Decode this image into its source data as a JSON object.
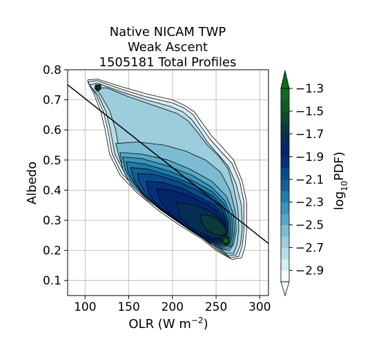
{
  "chart_data": {
    "type": "contourf",
    "title": [
      "Native NICAM TWP",
      "Weak Ascent",
      "1505181 Total Profiles"
    ],
    "xlabel_main": "OLR (W m",
    "xlabel_sup": "−2",
    "xlabel_end": ")",
    "ylabel": "Albedo",
    "xlim": [
      80,
      310
    ],
    "ylim": [
      0.05,
      0.8
    ],
    "xticks": [
      100,
      150,
      200,
      250,
      300
    ],
    "yticks": [
      0.1,
      0.2,
      0.3,
      0.4,
      0.5,
      0.6,
      0.7,
      0.8
    ],
    "ytick_labels": [
      "0.1",
      "0.2",
      "0.3",
      "0.4",
      "0.5",
      "0.6",
      "0.7",
      "0.8"
    ],
    "grid": true,
    "colorbar": {
      "label_main": "log",
      "label_sub": "10",
      "label_end": "PDF)",
      "levels": [
        -3.0,
        -2.9,
        -2.8,
        -2.7,
        -2.6,
        -2.5,
        -2.4,
        -2.3,
        -2.2,
        -2.1,
        -2.0,
        -1.9,
        -1.8,
        -1.7,
        -1.6,
        -1.5,
        -1.4,
        -1.3
      ],
      "tick_values": [
        -2.9,
        -2.7,
        -2.5,
        -2.3,
        -2.1,
        -1.9,
        -1.7,
        -1.5,
        -1.3
      ],
      "tick_labels": [
        "−2.9",
        "−2.7",
        "−2.5",
        "−2.3",
        "−2.1",
        "−1.9",
        "−1.7",
        "−1.5",
        "−1.3"
      ],
      "colors": [
        "#f7fcfd",
        "#d6ecf1",
        "#b9dde6",
        "#9ccddc",
        "#7cbcd2",
        "#57a7c5",
        "#3a93b8",
        "#1f7caa",
        "#11609a",
        "#0a4b8a",
        "#06317a",
        "#052569",
        "#062e55",
        "#0b3a3a",
        "#0c4a2b",
        "#0f5c26",
        "#0f6b1f",
        "#08701a"
      ],
      "over_color": "#08701a",
      "under_color": "#f7fcfd",
      "extend": "both"
    },
    "contours": [
      {
        "level": -3.0,
        "points": [
          [
            103,
            0.766
          ],
          [
            114,
            0.769
          ],
          [
            140,
            0.745
          ],
          [
            170,
            0.72
          ],
          [
            200,
            0.7
          ],
          [
            215,
            0.68
          ],
          [
            225,
            0.66
          ],
          [
            235,
            0.62
          ],
          [
            245,
            0.58
          ],
          [
            258,
            0.54
          ],
          [
            270,
            0.5
          ],
          [
            280,
            0.43
          ],
          [
            285,
            0.36
          ],
          [
            285,
            0.27
          ],
          [
            283,
            0.21
          ],
          [
            279,
            0.175
          ],
          [
            268,
            0.17
          ],
          [
            250,
            0.2
          ],
          [
            235,
            0.235
          ],
          [
            210,
            0.28
          ],
          [
            185,
            0.33
          ],
          [
            160,
            0.39
          ],
          [
            140,
            0.45
          ],
          [
            128,
            0.52
          ],
          [
            123,
            0.6
          ],
          [
            118,
            0.66
          ],
          [
            110,
            0.72
          ],
          [
            103,
            0.76
          ]
        ]
      },
      {
        "level": -2.9,
        "points": [
          [
            104,
            0.76
          ],
          [
            114,
            0.764
          ],
          [
            140,
            0.737
          ],
          [
            170,
            0.71
          ],
          [
            200,
            0.69
          ],
          [
            214,
            0.672
          ],
          [
            224,
            0.65
          ],
          [
            233,
            0.61
          ],
          [
            243,
            0.57
          ],
          [
            255,
            0.53
          ],
          [
            268,
            0.49
          ],
          [
            277,
            0.43
          ],
          [
            282,
            0.36
          ],
          [
            282,
            0.27
          ],
          [
            280,
            0.215
          ],
          [
            276,
            0.18
          ],
          [
            266,
            0.176
          ],
          [
            250,
            0.205
          ],
          [
            235,
            0.24
          ],
          [
            212,
            0.283
          ],
          [
            186,
            0.335
          ],
          [
            162,
            0.395
          ],
          [
            142,
            0.455
          ],
          [
            131,
            0.52
          ],
          [
            126,
            0.6
          ],
          [
            121,
            0.66
          ],
          [
            112,
            0.72
          ],
          [
            104,
            0.755
          ]
        ]
      },
      {
        "level": -2.8,
        "points": [
          [
            106,
            0.75
          ],
          [
            114,
            0.756
          ],
          [
            140,
            0.728
          ],
          [
            170,
            0.7
          ],
          [
            198,
            0.678
          ],
          [
            212,
            0.66
          ],
          [
            222,
            0.635
          ],
          [
            231,
            0.6
          ],
          [
            240,
            0.56
          ],
          [
            252,
            0.52
          ],
          [
            264,
            0.48
          ],
          [
            273,
            0.42
          ],
          [
            279,
            0.35
          ],
          [
            280,
            0.27
          ],
          [
            278,
            0.22
          ],
          [
            273,
            0.185
          ],
          [
            264,
            0.182
          ],
          [
            250,
            0.21
          ],
          [
            236,
            0.245
          ],
          [
            213,
            0.288
          ],
          [
            188,
            0.34
          ],
          [
            164,
            0.4
          ],
          [
            145,
            0.46
          ],
          [
            134,
            0.52
          ],
          [
            129,
            0.6
          ],
          [
            124,
            0.66
          ],
          [
            115,
            0.715
          ],
          [
            106,
            0.745
          ]
        ]
      },
      {
        "level": -2.7,
        "points": [
          [
            112,
            0.74
          ],
          [
            125,
            0.74
          ],
          [
            150,
            0.71
          ],
          [
            180,
            0.68
          ],
          [
            205,
            0.655
          ],
          [
            218,
            0.63
          ],
          [
            228,
            0.595
          ],
          [
            240,
            0.55
          ],
          [
            254,
            0.51
          ],
          [
            264,
            0.47
          ],
          [
            270,
            0.41
          ],
          [
            275,
            0.34
          ],
          [
            276,
            0.27
          ],
          [
            274,
            0.22
          ],
          [
            270,
            0.19
          ],
          [
            262,
            0.19
          ],
          [
            250,
            0.215
          ],
          [
            237,
            0.25
          ],
          [
            215,
            0.293
          ],
          [
            190,
            0.345
          ],
          [
            167,
            0.405
          ],
          [
            150,
            0.46
          ],
          [
            140,
            0.52
          ],
          [
            135,
            0.6
          ],
          [
            128,
            0.665
          ],
          [
            118,
            0.715
          ]
        ]
      },
      {
        "level": -2.6,
        "points": [
          [
            135,
            0.555
          ],
          [
            160,
            0.56
          ],
          [
            190,
            0.55
          ],
          [
            215,
            0.53
          ],
          [
            238,
            0.5
          ],
          [
            255,
            0.46
          ],
          [
            266,
            0.4
          ],
          [
            272,
            0.33
          ],
          [
            273,
            0.265
          ],
          [
            270,
            0.22
          ],
          [
            265,
            0.198
          ],
          [
            255,
            0.205
          ],
          [
            243,
            0.225
          ],
          [
            228,
            0.26
          ],
          [
            205,
            0.3
          ],
          [
            185,
            0.34
          ],
          [
            165,
            0.39
          ],
          [
            150,
            0.44
          ],
          [
            140,
            0.5
          ]
        ]
      },
      {
        "level": -2.5,
        "points": [
          [
            140,
            0.525
          ],
          [
            165,
            0.52
          ],
          [
            195,
            0.5
          ],
          [
            220,
            0.47
          ],
          [
            245,
            0.43
          ],
          [
            262,
            0.38
          ],
          [
            270,
            0.32
          ],
          [
            271,
            0.26
          ],
          [
            268,
            0.215
          ],
          [
            262,
            0.203
          ],
          [
            250,
            0.212
          ],
          [
            235,
            0.24
          ],
          [
            215,
            0.28
          ],
          [
            192,
            0.325
          ],
          [
            170,
            0.37
          ],
          [
            152,
            0.42
          ],
          [
            143,
            0.47
          ]
        ]
      },
      {
        "level": -2.4,
        "points": [
          [
            143,
            0.51
          ],
          [
            165,
            0.505
          ],
          [
            195,
            0.48
          ],
          [
            222,
            0.45
          ],
          [
            245,
            0.41
          ],
          [
            260,
            0.365
          ],
          [
            268,
            0.31
          ],
          [
            269,
            0.255
          ],
          [
            266,
            0.215
          ],
          [
            258,
            0.21
          ],
          [
            245,
            0.22
          ],
          [
            230,
            0.25
          ],
          [
            210,
            0.29
          ],
          [
            188,
            0.335
          ],
          [
            168,
            0.38
          ],
          [
            153,
            0.43
          ],
          [
            146,
            0.47
          ]
        ]
      },
      {
        "level": -2.3,
        "points": [
          [
            147,
            0.495
          ],
          [
            168,
            0.487
          ],
          [
            198,
            0.462
          ],
          [
            224,
            0.43
          ],
          [
            246,
            0.395
          ],
          [
            259,
            0.355
          ],
          [
            266,
            0.305
          ],
          [
            267,
            0.25
          ],
          [
            264,
            0.218
          ],
          [
            255,
            0.215
          ],
          [
            242,
            0.227
          ],
          [
            226,
            0.256
          ],
          [
            205,
            0.298
          ],
          [
            184,
            0.343
          ],
          [
            166,
            0.388
          ],
          [
            155,
            0.43
          ],
          [
            149,
            0.465
          ]
        ]
      },
      {
        "level": -2.2,
        "points": [
          [
            152,
            0.475
          ],
          [
            172,
            0.47
          ],
          [
            200,
            0.445
          ],
          [
            226,
            0.415
          ],
          [
            247,
            0.38
          ],
          [
            258,
            0.345
          ],
          [
            264,
            0.3
          ],
          [
            265,
            0.248
          ],
          [
            262,
            0.222
          ],
          [
            253,
            0.22
          ],
          [
            240,
            0.232
          ],
          [
            222,
            0.263
          ],
          [
            201,
            0.305
          ],
          [
            181,
            0.35
          ],
          [
            165,
            0.395
          ],
          [
            156,
            0.435
          ]
        ]
      },
      {
        "level": -2.1,
        "points": [
          [
            160,
            0.455
          ],
          [
            180,
            0.452
          ],
          [
            205,
            0.43
          ],
          [
            228,
            0.4
          ],
          [
            246,
            0.37
          ],
          [
            257,
            0.336
          ],
          [
            263,
            0.295
          ],
          [
            263,
            0.25
          ],
          [
            260,
            0.227
          ],
          [
            251,
            0.225
          ],
          [
            238,
            0.237
          ],
          [
            220,
            0.268
          ],
          [
            199,
            0.31
          ],
          [
            180,
            0.355
          ],
          [
            167,
            0.4
          ],
          [
            161,
            0.43
          ]
        ]
      },
      {
        "level": -2.0,
        "points": [
          [
            170,
            0.43
          ],
          [
            190,
            0.425
          ],
          [
            212,
            0.405
          ],
          [
            232,
            0.375
          ],
          [
            248,
            0.35
          ],
          [
            258,
            0.32
          ],
          [
            262,
            0.285
          ],
          [
            262,
            0.25
          ],
          [
            259,
            0.232
          ],
          [
            249,
            0.23
          ],
          [
            235,
            0.243
          ],
          [
            217,
            0.275
          ],
          [
            197,
            0.318
          ],
          [
            180,
            0.36
          ],
          [
            172,
            0.395
          ]
        ]
      },
      {
        "level": -1.9,
        "points": [
          [
            182,
            0.405
          ],
          [
            200,
            0.4
          ],
          [
            220,
            0.38
          ],
          [
            238,
            0.355
          ],
          [
            251,
            0.33
          ],
          [
            259,
            0.3
          ],
          [
            261,
            0.27
          ],
          [
            260,
            0.245
          ],
          [
            256,
            0.235
          ],
          [
            246,
            0.236
          ],
          [
            232,
            0.25
          ],
          [
            214,
            0.283
          ],
          [
            196,
            0.325
          ],
          [
            186,
            0.365
          ]
        ]
      },
      {
        "level": -1.8,
        "points": [
          [
            205,
            0.36
          ],
          [
            222,
            0.352
          ],
          [
            240,
            0.335
          ],
          [
            252,
            0.312
          ],
          [
            259,
            0.285
          ],
          [
            260,
            0.26
          ],
          [
            258,
            0.243
          ],
          [
            250,
            0.24
          ],
          [
            238,
            0.25
          ],
          [
            222,
            0.275
          ],
          [
            209,
            0.31
          ]
        ]
      },
      {
        "level": -1.7,
        "points": [
          [
            232,
            0.32
          ],
          [
            244,
            0.315
          ],
          [
            254,
            0.3
          ],
          [
            260,
            0.28
          ],
          [
            262,
            0.26
          ],
          [
            258,
            0.25
          ],
          [
            248,
            0.253
          ],
          [
            238,
            0.27
          ],
          [
            233,
            0.295
          ]
        ]
      },
      {
        "level": -1.6,
        "points": [
          [
            257,
            0.245
          ],
          [
            262,
            0.248
          ],
          [
            266,
            0.237
          ],
          [
            265,
            0.222
          ],
          [
            260,
            0.218
          ],
          [
            256,
            0.226
          ]
        ]
      },
      {
        "level": -1.5,
        "points": [
          [
            259,
            0.24
          ],
          [
            263,
            0.242
          ],
          [
            265,
            0.233
          ],
          [
            264,
            0.224
          ],
          [
            260,
            0.222
          ],
          [
            258,
            0.23
          ]
        ]
      },
      {
        "level": -1.6,
        "points": [
          [
            112,
            0.75
          ],
          [
            118,
            0.75
          ],
          [
            118,
            0.735
          ],
          [
            114,
            0.728
          ],
          [
            111,
            0.738
          ]
        ]
      },
      {
        "level": -1.7,
        "points": [
          [
            113,
            0.747
          ],
          [
            116,
            0.747
          ],
          [
            116,
            0.737
          ],
          [
            113,
            0.734
          ]
        ]
      }
    ],
    "regression_line": {
      "x": [
        80,
        310
      ],
      "y": [
        0.75,
        0.223
      ]
    }
  }
}
